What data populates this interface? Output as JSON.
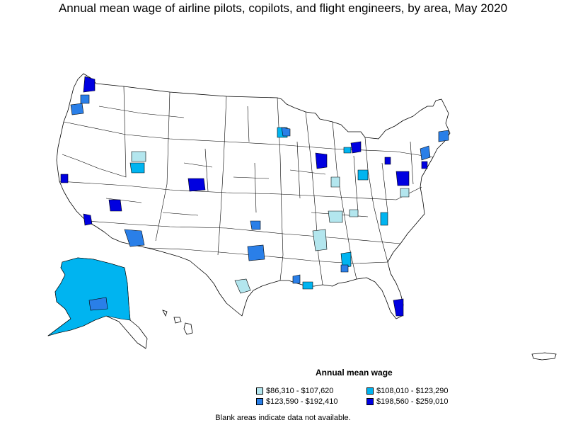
{
  "title": "Annual mean wage of airline pilots, copilots, and flight engineers, by area, May 2020",
  "legend": {
    "title": "Annual mean wage",
    "items": [
      {
        "label": "$86,310 - $107,620",
        "color": "#b3e6ee"
      },
      {
        "label": "$108,010 - $123,290",
        "color": "#00b4f0"
      },
      {
        "label": "$123,590 - $192,410",
        "color": "#2a7fe8"
      },
      {
        "label": "$198,560 - $259,010",
        "color": "#0000e0"
      }
    ]
  },
  "footnote": "Blank areas indicate data not available.",
  "colors": {
    "tier1": "#b3e6ee",
    "tier2": "#00b4f0",
    "tier3": "#2a7fe8",
    "tier4": "#0000e0",
    "outline": "#000000",
    "background": "#ffffff"
  }
}
